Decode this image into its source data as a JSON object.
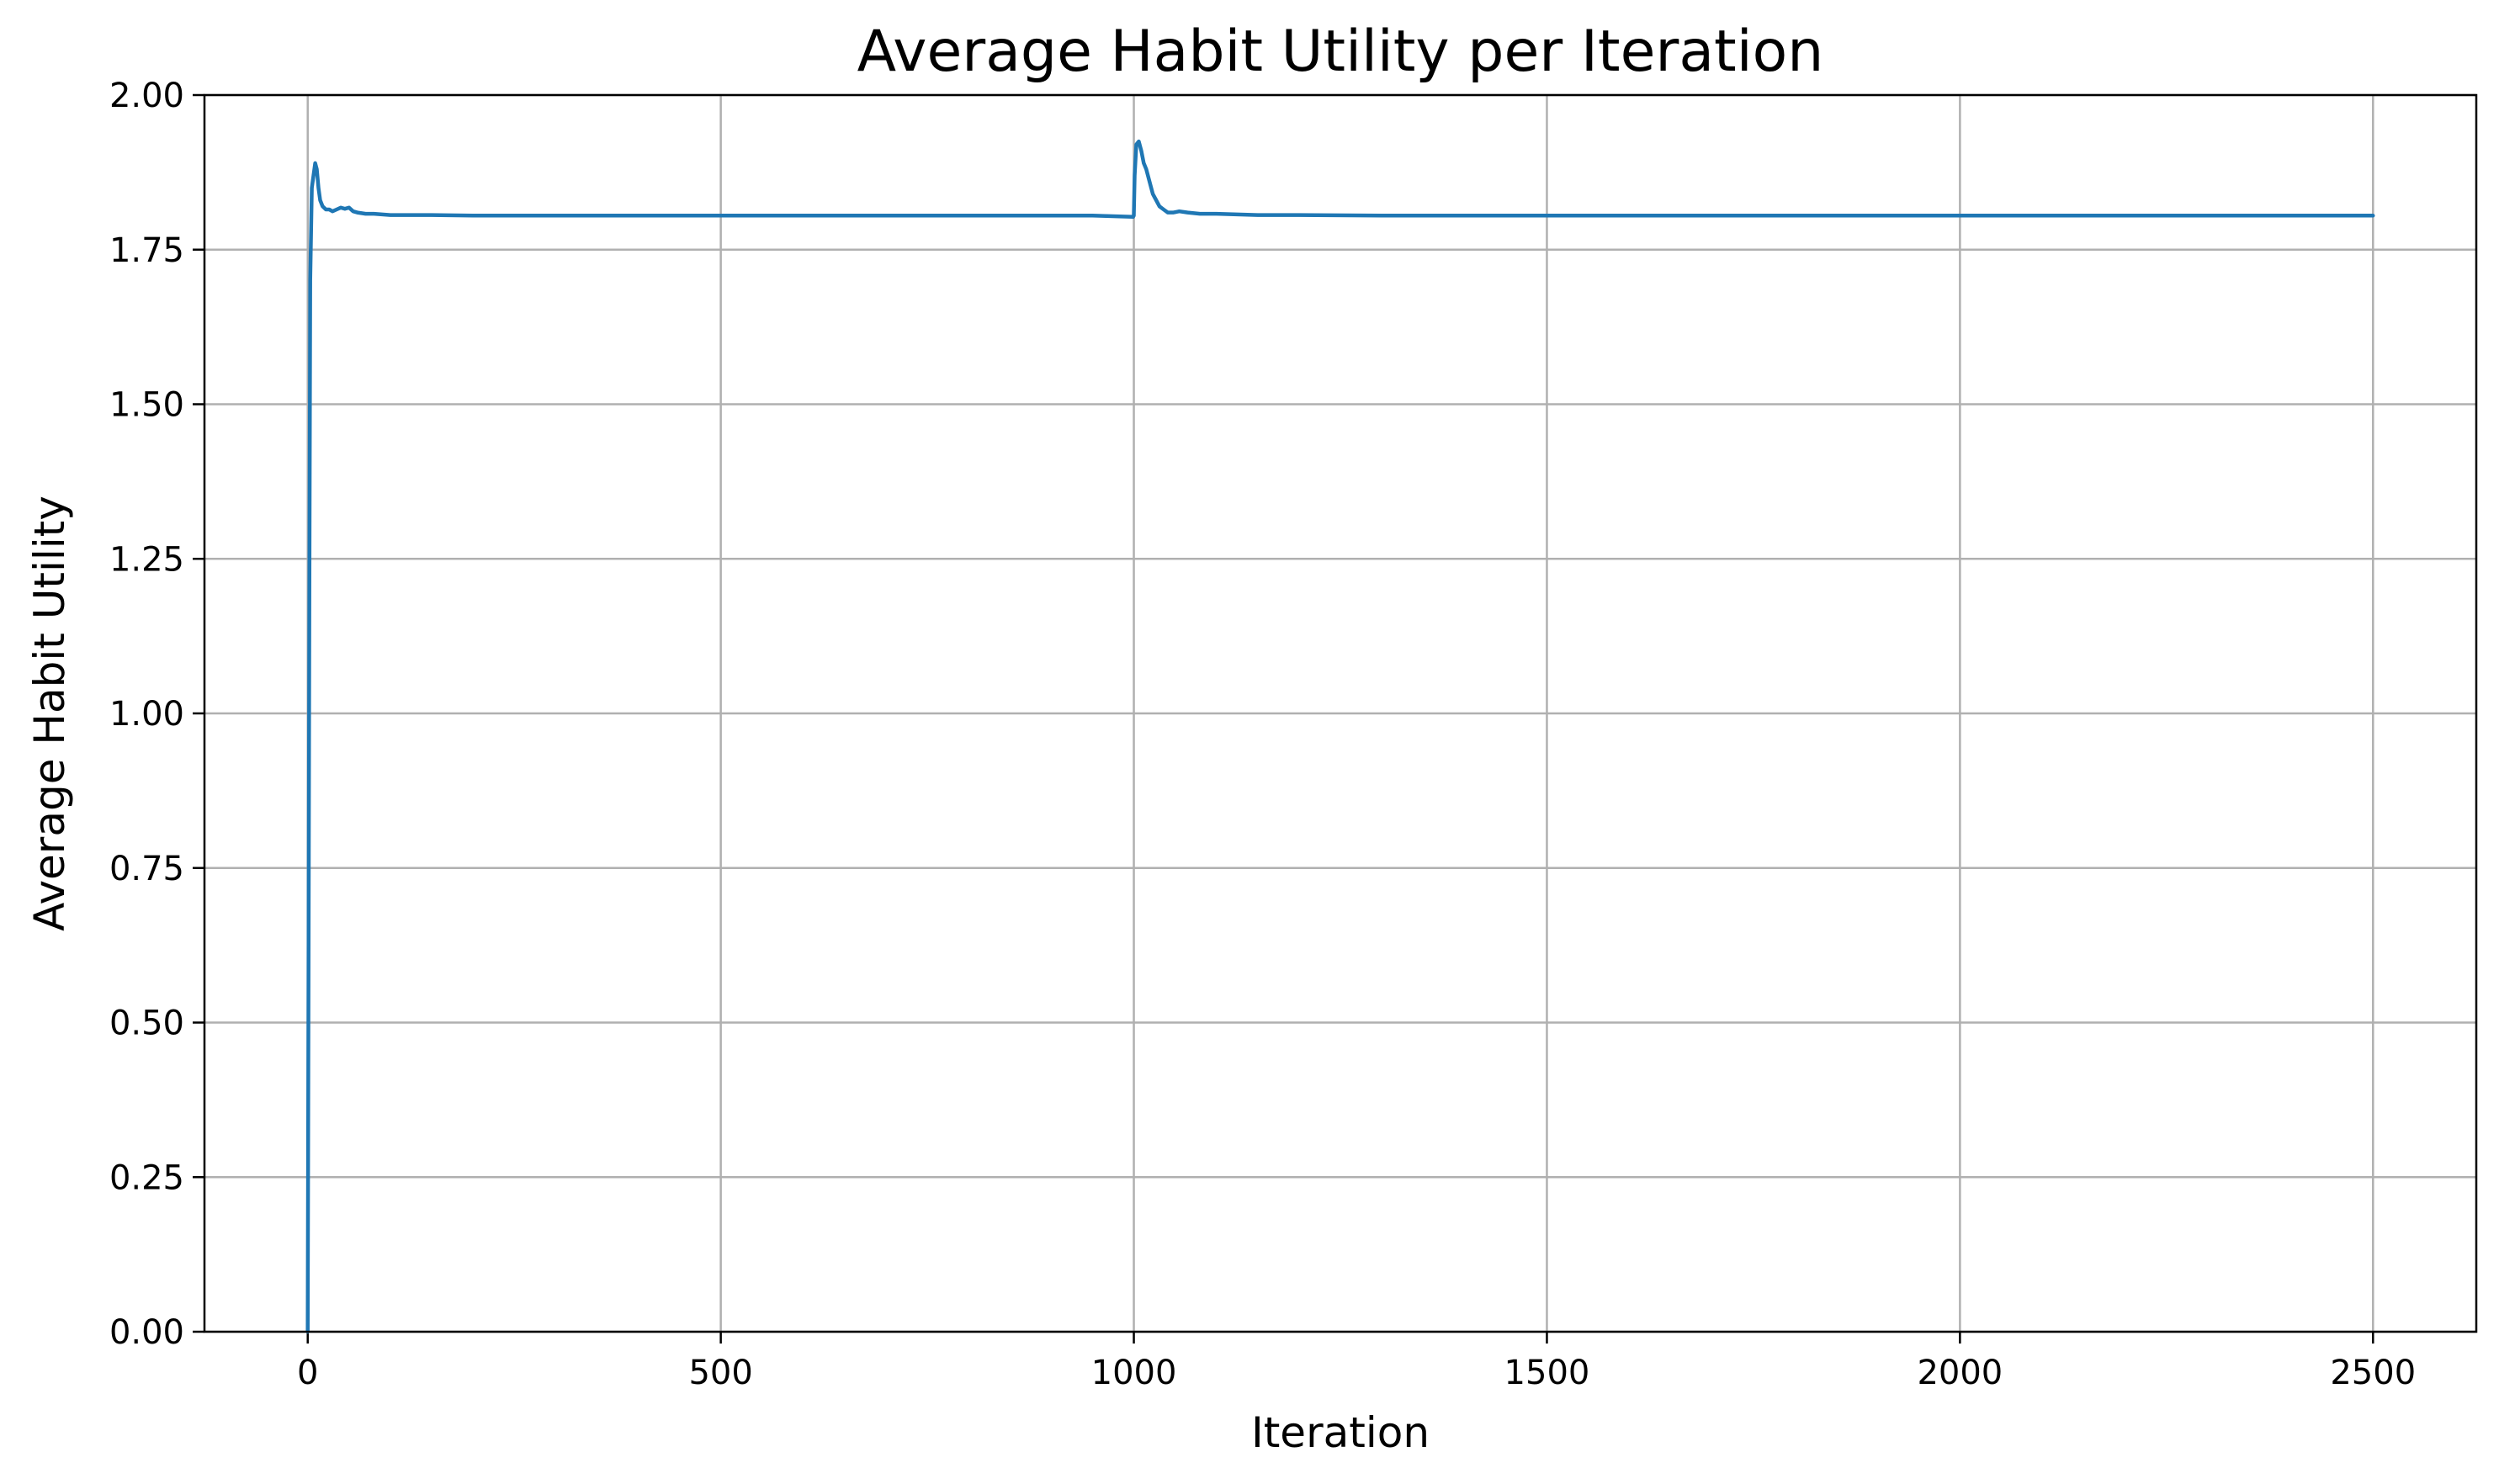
{
  "chart_data": {
    "type": "line",
    "title": "Average Habit Utility per Iteration",
    "xlabel": "Iteration",
    "ylabel": "Average Habit Utility",
    "xlim": [
      -125,
      2625
    ],
    "ylim": [
      0.0,
      2.0
    ],
    "xticks": [
      0,
      500,
      1000,
      1500,
      2000,
      2500
    ],
    "yticks": [
      "0.00",
      "0.25",
      "0.50",
      "0.75",
      "1.00",
      "1.25",
      "1.50",
      "1.75",
      "2.00"
    ],
    "grid": true,
    "series_color": "#1f77b4",
    "series": [
      {
        "x": [
          0,
          1,
          2,
          3,
          5,
          7,
          9,
          11,
          13,
          15,
          18,
          22,
          26,
          30,
          35,
          40,
          45,
          50,
          55,
          60,
          70,
          80,
          100,
          150,
          200,
          300,
          400,
          500,
          600,
          700,
          800,
          900,
          950,
          999,
          1000,
          1001,
          1003,
          1006,
          1009,
          1012,
          1015,
          1019,
          1023,
          1027,
          1031,
          1036,
          1041,
          1048,
          1055,
          1065,
          1080,
          1100,
          1150,
          1200,
          1300,
          1400,
          1500,
          1600,
          1700,
          1800,
          1900,
          2000,
          2100,
          2200,
          2300,
          2400,
          2500
        ],
        "values": [
          0.0,
          0.6,
          1.2,
          1.7,
          1.85,
          1.87,
          1.89,
          1.88,
          1.85,
          1.83,
          1.82,
          1.815,
          1.815,
          1.812,
          1.815,
          1.818,
          1.816,
          1.818,
          1.812,
          1.81,
          1.808,
          1.808,
          1.806,
          1.806,
          1.805,
          1.805,
          1.805,
          1.805,
          1.805,
          1.805,
          1.805,
          1.805,
          1.805,
          1.803,
          1.805,
          1.87,
          1.92,
          1.925,
          1.91,
          1.89,
          1.88,
          1.86,
          1.84,
          1.83,
          1.82,
          1.815,
          1.81,
          1.81,
          1.812,
          1.81,
          1.808,
          1.808,
          1.806,
          1.806,
          1.805,
          1.805,
          1.805,
          1.805,
          1.805,
          1.805,
          1.805,
          1.805,
          1.805,
          1.805,
          1.805,
          1.805,
          1.805
        ]
      }
    ]
  }
}
